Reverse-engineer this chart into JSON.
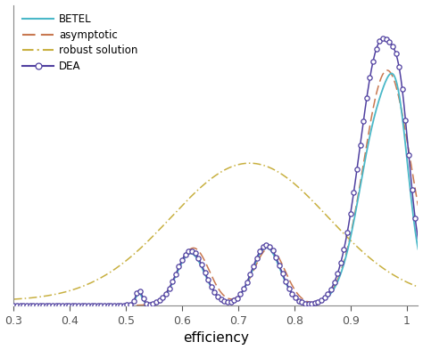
{
  "title": "",
  "xlabel": "efficiency",
  "ylabel": "",
  "xlim": [
    0.3,
    1.02
  ],
  "ylim": [
    0,
    1.05
  ],
  "xticks": [
    0.3,
    0.4,
    0.5,
    0.6,
    0.7,
    0.8,
    0.9,
    1.0
  ],
  "xtick_labels": [
    "0.3",
    "0.4",
    "0.5",
    "0.6",
    "0.7",
    "0.8",
    "0.9",
    "1"
  ],
  "betel_color": "#4ab8c8",
  "asymptotic_color": "#c87850",
  "robust_color": "#c8b040",
  "dea_color": "#5040a0",
  "background_color": "#ffffff"
}
